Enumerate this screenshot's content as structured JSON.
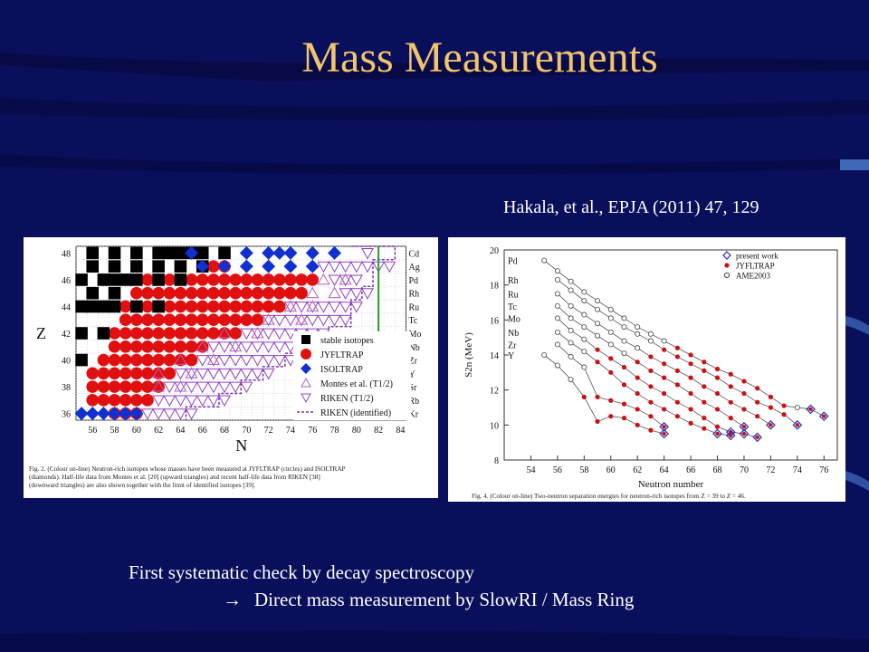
{
  "slide": {
    "title": "Mass Measurements",
    "reference": "Hakala, et al., EPJA (2011) 47, 129",
    "bottom_line1": "First systematic check by decay spectroscopy",
    "bottom_arrow": "→",
    "bottom_line2": "Direct mass measurement by SlowRI / Mass Ring",
    "colors": {
      "background": "#0a0f5c",
      "title": "#f2c56b",
      "text": "#ffffff"
    }
  },
  "chart_data": [
    {
      "type": "scatter",
      "xlabel": "N",
      "ylabel": "Z",
      "x_ticks": [
        56,
        58,
        60,
        62,
        64,
        66,
        68,
        70,
        72,
        74,
        76,
        78,
        80,
        82,
        84
      ],
      "y_ticks": [
        36,
        38,
        40,
        42,
        44,
        46,
        48
      ],
      "element_labels": [
        "Cd",
        "Ag",
        "Pd",
        "Rh",
        "Ru",
        "Tc",
        "Mo",
        "Nb",
        "Zr",
        "Y",
        "Sr",
        "Rb",
        "Kr"
      ],
      "legend": [
        "stable isotopes",
        "JYFLTRAP",
        "ISOLTRAP",
        "Montes et al. (T1/2)",
        "RIKEN (T1/2)",
        "RIKEN (identified)"
      ],
      "caption": "Fig. 2. (Colour on-line) Neutron-rich isotopes whose masses have been measured at JYFLTRAP (circles) and ISOLTRAP (diamonds). Half-life data from Montes et al. [20] (upward triangles) and recent half-life data from RIKEN [38] (downward triangles) are also shown together with the limit of identified isotopes [39].",
      "vertical_marker_N": 82,
      "stable": [
        [
          56,
          48
        ],
        [
          58,
          48
        ],
        [
          60,
          48
        ],
        [
          62,
          48
        ],
        [
          63,
          48
        ],
        [
          64,
          48
        ],
        [
          65,
          48
        ],
        [
          66,
          48
        ],
        [
          68,
          48
        ],
        [
          56,
          47
        ],
        [
          58,
          47
        ],
        [
          60,
          47
        ],
        [
          62,
          47
        ],
        [
          64,
          47
        ],
        [
          66,
          47
        ],
        [
          55,
          46
        ],
        [
          57,
          46
        ],
        [
          58,
          46
        ],
        [
          59,
          46
        ],
        [
          60,
          46
        ],
        [
          62,
          46
        ],
        [
          64,
          46
        ],
        [
          56,
          45
        ],
        [
          58,
          45
        ],
        [
          55,
          44
        ],
        [
          56,
          44
        ],
        [
          57,
          44
        ],
        [
          58,
          44
        ],
        [
          60,
          44
        ],
        [
          62,
          44
        ],
        [
          55,
          42
        ],
        [
          57,
          42
        ],
        [
          55,
          40
        ]
      ],
      "isoltrap": [
        [
          65,
          48
        ],
        [
          70,
          48
        ],
        [
          72,
          48
        ],
        [
          73,
          48
        ],
        [
          74,
          48
        ],
        [
          76,
          48
        ],
        [
          78,
          48
        ],
        [
          66,
          47
        ],
        [
          68,
          47
        ],
        [
          70,
          47
        ],
        [
          72,
          47
        ],
        [
          74,
          47
        ],
        [
          76,
          47
        ],
        [
          55,
          36
        ],
        [
          56,
          36
        ],
        [
          57,
          36
        ],
        [
          58,
          36
        ],
        [
          59,
          36
        ],
        [
          60,
          36
        ]
      ],
      "jyfltrap_ranges": [
        [
          47,
          67,
          68
        ],
        [
          46,
          61,
          76
        ],
        [
          45,
          60,
          75
        ],
        [
          44,
          59,
          73
        ],
        [
          43,
          59,
          71
        ],
        [
          42,
          58,
          69
        ],
        [
          41,
          58,
          66
        ],
        [
          40,
          57,
          65
        ],
        [
          39,
          56,
          63
        ],
        [
          38,
          56,
          62
        ],
        [
          37,
          56,
          61
        ],
        [
          36,
          58,
          60
        ]
      ],
      "montes": [
        [
          77,
          46
        ],
        [
          79,
          46
        ],
        [
          76,
          45
        ],
        [
          78,
          45
        ],
        [
          74,
          44
        ],
        [
          76,
          44
        ],
        [
          72,
          43
        ],
        [
          75,
          43
        ],
        [
          68,
          42
        ],
        [
          71,
          42
        ],
        [
          66,
          41
        ],
        [
          69,
          41
        ],
        [
          64,
          40
        ],
        [
          67,
          40
        ],
        [
          62,
          39
        ],
        [
          65,
          39
        ],
        [
          62,
          38
        ],
        [
          64,
          38
        ]
      ],
      "riken_ranges": [
        [
          48,
          81,
          81
        ],
        [
          47,
          77,
          83
        ],
        [
          46,
          78,
          80
        ],
        [
          45,
          79,
          81
        ],
        [
          44,
          74,
          80
        ],
        [
          43,
          72,
          79
        ],
        [
          42,
          70,
          77
        ],
        [
          41,
          67,
          75
        ],
        [
          40,
          66,
          74
        ],
        [
          39,
          64,
          72
        ],
        [
          38,
          63,
          70
        ],
        [
          37,
          62,
          68
        ],
        [
          36,
          61,
          65
        ]
      ],
      "riken_identified": [
        [
          80,
          48.5
        ],
        [
          84,
          48.5
        ],
        [
          84,
          47.5
        ],
        [
          82,
          47.5
        ],
        [
          82,
          45.5
        ],
        [
          81,
          45.5
        ],
        [
          81,
          44.5
        ],
        [
          80,
          44.5
        ],
        [
          80,
          42.5
        ],
        [
          78,
          42.5
        ],
        [
          78,
          41.5
        ],
        [
          76,
          41.5
        ],
        [
          76,
          40.5
        ],
        [
          74,
          40.5
        ],
        [
          74,
          39.5
        ],
        [
          72,
          39.5
        ],
        [
          72,
          38.5
        ],
        [
          70,
          38.5
        ],
        [
          70,
          37.5
        ],
        [
          68,
          37.5
        ],
        [
          68,
          36.5
        ],
        [
          65,
          36.5
        ],
        [
          65,
          35.5
        ]
      ]
    },
    {
      "type": "line",
      "xlabel": "Neutron number",
      "ylabel": "S2n (MeV)",
      "xlim": [
        52,
        77
      ],
      "ylim": [
        8,
        20
      ],
      "x_ticks": [
        54,
        56,
        58,
        60,
        62,
        64,
        66,
        68,
        70,
        72,
        74,
        76
      ],
      "y_ticks": [
        8,
        10,
        12,
        14,
        16,
        18,
        20
      ],
      "legend": [
        "present work",
        "JYFLTRAP",
        "AME2003"
      ],
      "caption": "Fig. 4. (Colour on-line) Two-neutron separation energies for neutron-rich isotopes from Z = 39 to Z = 46.",
      "series": [
        {
          "name": "Pd",
          "x": [
            55,
            56,
            57,
            58,
            59,
            60,
            61,
            62,
            63,
            64,
            65,
            66,
            67,
            68,
            69,
            70,
            71,
            72,
            73,
            74,
            75,
            76
          ],
          "values": [
            19.4,
            18.8,
            18.2,
            17.6,
            17.1,
            16.6,
            16.1,
            15.6,
            15.2,
            14.8,
            14.4,
            14.0,
            13.6,
            13.2,
            12.9,
            12.5,
            12.1,
            11.6,
            11.1,
            11.0,
            10.9,
            10.5
          ],
          "kinds": [
            "a",
            "a",
            "a",
            "a",
            "a",
            "a",
            "a",
            "a",
            "a",
            "a",
            "j",
            "j",
            "j",
            "j",
            "j",
            "j",
            "j",
            "j",
            "j",
            "a",
            "p",
            "p"
          ]
        },
        {
          "name": "Rh",
          "x": [
            56,
            57,
            58,
            59,
            60,
            61,
            62,
            63,
            64,
            65,
            66,
            67,
            68,
            69,
            70,
            71,
            72,
            73,
            74
          ],
          "values": [
            18.3,
            17.7,
            17.1,
            16.6,
            16.1,
            15.6,
            15.2,
            14.8,
            14.3,
            13.9,
            13.5,
            13.1,
            12.7,
            12.2,
            11.8,
            11.3,
            11.0,
            10.6,
            10.0
          ],
          "kinds": [
            "a",
            "a",
            "a",
            "a",
            "a",
            "a",
            "a",
            "a",
            "j",
            "j",
            "j",
            "j",
            "j",
            "j",
            "j",
            "j",
            "j",
            "j",
            "p"
          ]
        },
        {
          "name": "Ru",
          "x": [
            56,
            57,
            58,
            59,
            60,
            61,
            62,
            63,
            64,
            65,
            66,
            67,
            68,
            69,
            70,
            71,
            72
          ],
          "values": [
            17.5,
            16.8,
            16.3,
            15.8,
            15.3,
            14.8,
            14.4,
            13.9,
            13.5,
            13.1,
            12.7,
            12.2,
            11.8,
            11.3,
            10.9,
            10.5,
            10.0
          ],
          "kinds": [
            "a",
            "a",
            "a",
            "a",
            "a",
            "a",
            "a",
            "j",
            "j",
            "j",
            "j",
            "j",
            "j",
            "j",
            "j",
            "j",
            "p"
          ]
        },
        {
          "name": "Tc",
          "x": [
            56,
            57,
            58,
            59,
            60,
            61,
            62,
            63,
            64,
            65,
            66,
            67,
            68,
            69,
            70
          ],
          "values": [
            16.8,
            16.1,
            15.6,
            15.1,
            14.6,
            14.1,
            13.6,
            13.1,
            12.7,
            12.3,
            11.8,
            11.3,
            10.9,
            10.4,
            9.9
          ],
          "kinds": [
            "a",
            "a",
            "a",
            "a",
            "a",
            "a",
            "j",
            "j",
            "j",
            "j",
            "j",
            "j",
            "j",
            "j",
            "p"
          ]
        },
        {
          "name": "Mo",
          "x": [
            56,
            57,
            58,
            59,
            60,
            61,
            62,
            63,
            64,
            65,
            66,
            67,
            68,
            69,
            70,
            71
          ],
          "values": [
            16.1,
            15.4,
            14.9,
            14.3,
            13.8,
            13.3,
            12.7,
            12.2,
            11.8,
            11.3,
            10.9,
            10.4,
            9.9,
            9.6,
            9.5,
            9.3
          ],
          "kinds": [
            "a",
            "a",
            "a",
            "j",
            "j",
            "j",
            "j",
            "j",
            "j",
            "j",
            "j",
            "j",
            "j",
            "p",
            "p",
            "p"
          ]
        },
        {
          "name": "Nb",
          "x": [
            56,
            57,
            58,
            59,
            60,
            61,
            62,
            63,
            64,
            65,
            66,
            67,
            68,
            69
          ],
          "values": [
            15.3,
            14.7,
            14.2,
            13.6,
            13.0,
            12.3,
            11.8,
            11.3,
            10.9,
            10.5,
            10.1,
            9.8,
            9.5,
            9.4
          ],
          "kinds": [
            "a",
            "a",
            "a",
            "j",
            "j",
            "j",
            "j",
            "j",
            "j",
            "j",
            "j",
            "j",
            "p",
            "p"
          ]
        },
        {
          "name": "Zr",
          "x": [
            56,
            57,
            58,
            59,
            60,
            61,
            62,
            63,
            64
          ],
          "values": [
            14.6,
            13.9,
            13.3,
            11.6,
            11.4,
            11.2,
            10.9,
            10.5,
            9.9
          ],
          "kinds": [
            "a",
            "a",
            "a",
            "j",
            "j",
            "j",
            "j",
            "j",
            "p"
          ]
        },
        {
          "name": "Y",
          "x": [
            55,
            56,
            57,
            58,
            59,
            60,
            61,
            62,
            63,
            64
          ],
          "values": [
            14.0,
            13.4,
            12.6,
            11.6,
            10.2,
            10.5,
            10.4,
            10.0,
            9.7,
            9.5
          ],
          "kinds": [
            "a",
            "a",
            "a",
            "j",
            "j",
            "j",
            "j",
            "j",
            "j",
            "p"
          ]
        }
      ]
    }
  ]
}
